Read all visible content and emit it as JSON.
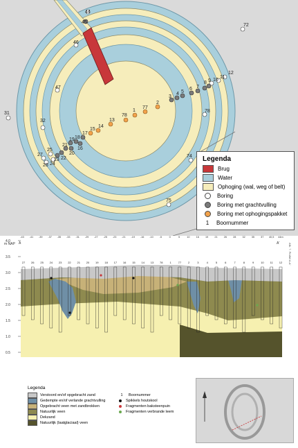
{
  "legend": {
    "title": "Legenda",
    "items": [
      {
        "label": "Brug",
        "color": "#c8373a"
      },
      {
        "label": "Water",
        "color": "#a9cfdc"
      },
      {
        "label": "Ophoging (wal, weg of belt)",
        "color": "#f6edbb"
      },
      {
        "label": "Boring",
        "dot": "#ffffff"
      },
      {
        "label": "Boring met grachtvulling",
        "dot": "#7a7a7a"
      },
      {
        "label": "Boring met ophogingspakket",
        "dot": "#f2a24b"
      },
      {
        "label": "Boornummer",
        "symbol": "1"
      }
    ]
  },
  "map_labels": {
    "white": [
      "44",
      "72",
      "46",
      "47",
      "31",
      "32",
      "12",
      "11",
      "10",
      "78",
      "74",
      "75",
      "27",
      "26",
      "25",
      "24"
    ],
    "grey": [
      "45",
      "3",
      "4",
      "5",
      "6",
      "7",
      "8",
      "9",
      "23",
      "22",
      "21",
      "20",
      "19",
      "18",
      "17",
      "16"
    ],
    "orange": [
      "77",
      "1",
      "2",
      "78",
      "13",
      "14",
      "15"
    ]
  },
  "profile": {
    "y_axis_label": "m NAP",
    "y_ticks": [
      "4.0",
      "3.5",
      "3.0",
      "2.5",
      "2.0",
      "1.5",
      "1.0",
      "0.5"
    ],
    "distance_ticks": [
      "-43",
      "-41",
      "-39",
      "-37",
      "-35",
      "-33",
      "-31",
      "-29",
      "-27",
      "-25",
      "-23",
      "-21",
      "-19",
      "-16",
      "-10",
      "-5",
      "0",
      "5",
      "10",
      "16",
      "19",
      "21",
      "26",
      "28",
      "32",
      "35",
      "37",
      "40,5",
      "44m"
    ],
    "boring_labels": [
      "27",
      "26",
      "25",
      "24",
      "23",
      "22",
      "21",
      "20",
      "19",
      "18",
      "17",
      "16",
      "15",
      "14",
      "13",
      "78",
      "1",
      "77",
      "2",
      "3",
      "4",
      "5",
      "6",
      "7",
      "8",
      "9",
      "10",
      "11",
      "12"
    ],
    "end_left": "A",
    "end_right": "A'",
    "credit": "Afb. 7. Profiel A-A'"
  },
  "bottom_legend": {
    "title": "Legenda",
    "layers": [
      {
        "label": "Verstoord en/of opgebracht zand",
        "color": "#c8c8c8"
      },
      {
        "label": "Gedempte en/of verlande grachtvulling",
        "color": "#6f8fa6"
      },
      {
        "label": "Opgebracht veen met zandbrokken",
        "color": "#c7b178"
      },
      {
        "label": "Natuurlijk veen",
        "color": "#8e8a4f"
      },
      {
        "label": "Dekzand",
        "color": "#f6f0b0"
      },
      {
        "label": "Natuurlijk (laatglaciaal) veen",
        "color": "#55532c"
      }
    ],
    "symbols": [
      {
        "label": "Boornummer",
        "symbol": "1"
      },
      {
        "label": "Spikkels houtskool",
        "dot": "#111111"
      },
      {
        "label": "Fragmenten baksteenpuin",
        "dot": "#c8373a"
      },
      {
        "label": "Fragmenten verbrande leem",
        "dot": "#6aa84f"
      }
    ]
  }
}
